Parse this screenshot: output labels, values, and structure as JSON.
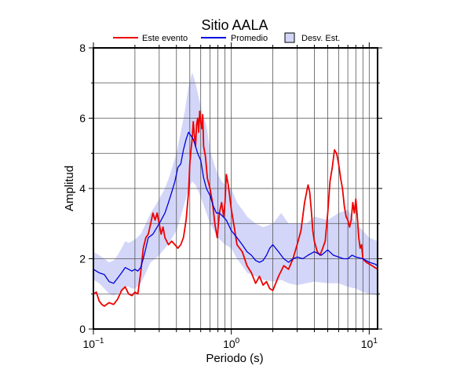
{
  "chart_data": {
    "type": "line",
    "title": "Sitio AALA",
    "xlabel": "Periodo (s)",
    "ylabel": "Amplitud",
    "xscale": "log",
    "xlim": [
      0.1,
      11.5
    ],
    "ylim": [
      0,
      8
    ],
    "grid": true,
    "legend_position": "top",
    "x_tick_labels": [
      {
        "value": 0.1,
        "base": "10",
        "exp": "−1"
      },
      {
        "value": 1,
        "base": "10",
        "exp": "0"
      },
      {
        "value": 10,
        "base": "10",
        "exp": "1"
      }
    ],
    "y_ticks": [
      0,
      2,
      4,
      6,
      8
    ],
    "legend": {
      "event_label": "Este evento",
      "mean_label": "Promedio",
      "band_label": "Desv. Est."
    },
    "colors": {
      "event": "#ee0000",
      "mean": "#0000dd",
      "band": "#d3d6f8"
    },
    "series": [
      {
        "name": "Este evento",
        "x": [
          0.1,
          0.105,
          0.11,
          0.115,
          0.12,
          0.13,
          0.14,
          0.15,
          0.16,
          0.17,
          0.18,
          0.19,
          0.2,
          0.21,
          0.22,
          0.23,
          0.24,
          0.25,
          0.26,
          0.27,
          0.28,
          0.29,
          0.3,
          0.31,
          0.32,
          0.33,
          0.35,
          0.37,
          0.39,
          0.41,
          0.43,
          0.45,
          0.47,
          0.49,
          0.5,
          0.51,
          0.52,
          0.53,
          0.54,
          0.55,
          0.56,
          0.57,
          0.58,
          0.59,
          0.6,
          0.61,
          0.62,
          0.63,
          0.65,
          0.67,
          0.7,
          0.73,
          0.76,
          0.79,
          0.82,
          0.85,
          0.88,
          0.9,
          0.92,
          0.95,
          1.0,
          1.05,
          1.1,
          1.2,
          1.3,
          1.4,
          1.5,
          1.6,
          1.7,
          1.8,
          1.9,
          2.0,
          2.2,
          2.4,
          2.6,
          2.8,
          3.0,
          3.2,
          3.4,
          3.6,
          3.7,
          3.8,
          3.9,
          4.0,
          4.2,
          4.4,
          4.6,
          4.8,
          5.0,
          5.2,
          5.4,
          5.6,
          5.8,
          6.0,
          6.2,
          6.4,
          6.6,
          6.8,
          7.0,
          7.2,
          7.4,
          7.6,
          7.8,
          8.0,
          8.2,
          8.4,
          8.6,
          8.8,
          9.0,
          9.5,
          10.0,
          10.5,
          11.0,
          11.5
        ],
        "y": [
          1.0,
          1.05,
          0.8,
          0.7,
          0.65,
          0.75,
          0.7,
          0.85,
          1.1,
          1.2,
          1.0,
          0.95,
          1.05,
          1.0,
          1.6,
          2.3,
          2.6,
          2.7,
          3.0,
          3.3,
          3.1,
          3.3,
          3.0,
          2.7,
          2.9,
          2.6,
          2.4,
          2.5,
          2.4,
          2.3,
          2.4,
          2.6,
          3.1,
          3.9,
          4.7,
          5.1,
          5.4,
          5.9,
          5.5,
          5.2,
          5.8,
          6.0,
          5.6,
          6.2,
          5.9,
          5.7,
          6.1,
          5.2,
          4.9,
          4.3,
          4.0,
          3.6,
          3.0,
          2.6,
          3.3,
          3.6,
          3.2,
          3.6,
          4.4,
          4.1,
          3.4,
          2.9,
          2.4,
          2.2,
          1.8,
          1.6,
          1.3,
          1.5,
          1.25,
          1.35,
          1.15,
          1.1,
          1.5,
          1.8,
          1.7,
          2.0,
          2.4,
          2.8,
          3.6,
          4.1,
          3.9,
          3.4,
          2.8,
          2.5,
          2.2,
          2.1,
          2.3,
          2.5,
          3.3,
          4.2,
          4.6,
          5.1,
          5.0,
          4.7,
          4.3,
          4.0,
          3.5,
          3.2,
          3.1,
          2.9,
          3.1,
          3.6,
          3.3,
          3.7,
          3.2,
          2.6,
          2.3,
          2.4,
          2.0,
          1.9,
          1.85,
          1.8,
          1.75,
          1.7
        ]
      },
      {
        "name": "Promedio",
        "x": [
          0.1,
          0.11,
          0.12,
          0.13,
          0.14,
          0.15,
          0.16,
          0.17,
          0.18,
          0.19,
          0.2,
          0.21,
          0.22,
          0.23,
          0.24,
          0.25,
          0.27,
          0.29,
          0.31,
          0.33,
          0.35,
          0.37,
          0.39,
          0.41,
          0.43,
          0.45,
          0.47,
          0.49,
          0.51,
          0.53,
          0.55,
          0.57,
          0.6,
          0.63,
          0.66,
          0.7,
          0.74,
          0.78,
          0.82,
          0.87,
          0.92,
          1.0,
          1.1,
          1.2,
          1.3,
          1.4,
          1.5,
          1.6,
          1.7,
          1.8,
          1.9,
          2.0,
          2.2,
          2.4,
          2.6,
          2.8,
          3.0,
          3.3,
          3.6,
          4.0,
          4.5,
          5.0,
          5.5,
          6.0,
          6.5,
          7.0,
          7.5,
          8.0,
          9.0,
          10.0,
          11.0,
          11.5
        ],
        "y": [
          1.7,
          1.6,
          1.55,
          1.35,
          1.3,
          1.45,
          1.6,
          1.75,
          1.7,
          1.65,
          1.7,
          1.65,
          1.75,
          2.0,
          2.3,
          2.6,
          2.7,
          2.9,
          3.1,
          3.3,
          3.6,
          3.9,
          4.2,
          4.6,
          4.7,
          5.1,
          5.4,
          5.6,
          5.5,
          5.4,
          5.2,
          5.0,
          4.8,
          4.3,
          4.0,
          3.8,
          3.5,
          3.3,
          3.3,
          3.2,
          3.1,
          2.8,
          2.6,
          2.4,
          2.2,
          2.1,
          1.95,
          1.9,
          1.95,
          2.1,
          2.3,
          2.4,
          2.2,
          2.0,
          1.9,
          2.0,
          2.05,
          2.0,
          2.1,
          2.2,
          2.1,
          2.25,
          2.1,
          2.05,
          2.0,
          2.0,
          2.1,
          2.05,
          2.0,
          1.9,
          1.85,
          1.8
        ]
      }
    ],
    "band": {
      "name": "Desv. Est.",
      "x": [
        0.1,
        0.11,
        0.12,
        0.13,
        0.14,
        0.15,
        0.16,
        0.17,
        0.18,
        0.19,
        0.2,
        0.22,
        0.24,
        0.26,
        0.28,
        0.3,
        0.33,
        0.36,
        0.4,
        0.43,
        0.46,
        0.49,
        0.52,
        0.55,
        0.58,
        0.62,
        0.66,
        0.7,
        0.75,
        0.8,
        0.85,
        0.9,
        1.0,
        1.1,
        1.2,
        1.3,
        1.5,
        1.7,
        2.0,
        2.3,
        2.6,
        3.0,
        3.5,
        4.0,
        5.0,
        6.0,
        7.0,
        8.0,
        9.0,
        10.0,
        11.5
      ],
      "upper": [
        2.2,
        2.1,
        2.0,
        1.9,
        1.95,
        2.1,
        2.3,
        2.5,
        2.45,
        2.5,
        2.55,
        2.7,
        3.0,
        3.3,
        3.5,
        3.7,
        4.0,
        4.4,
        5.0,
        5.6,
        6.2,
        6.9,
        7.3,
        7.0,
        6.6,
        6.1,
        5.8,
        5.1,
        4.7,
        4.4,
        4.2,
        4.1,
        4.0,
        3.6,
        3.4,
        3.2,
        3.0,
        2.9,
        3.0,
        3.3,
        3.0,
        3.0,
        3.0,
        3.2,
        3.1,
        3.3,
        3.4,
        3.0,
        2.8,
        2.6,
        2.5
      ],
      "lower": [
        1.4,
        1.3,
        1.15,
        1.0,
        0.95,
        1.0,
        1.1,
        1.2,
        1.2,
        1.15,
        1.15,
        1.3,
        1.6,
        1.9,
        2.0,
        2.1,
        2.3,
        2.5,
        2.8,
        3.2,
        3.6,
        4.0,
        4.2,
        4.1,
        3.9,
        3.6,
        3.3,
        3.0,
        2.8,
        2.6,
        2.5,
        2.4,
        2.3,
        2.0,
        1.8,
        1.6,
        1.5,
        1.4,
        1.35,
        1.4,
        1.3,
        1.25,
        1.3,
        1.35,
        1.3,
        1.3,
        1.2,
        1.15,
        1.05,
        1.0,
        0.95
      ]
    }
  }
}
